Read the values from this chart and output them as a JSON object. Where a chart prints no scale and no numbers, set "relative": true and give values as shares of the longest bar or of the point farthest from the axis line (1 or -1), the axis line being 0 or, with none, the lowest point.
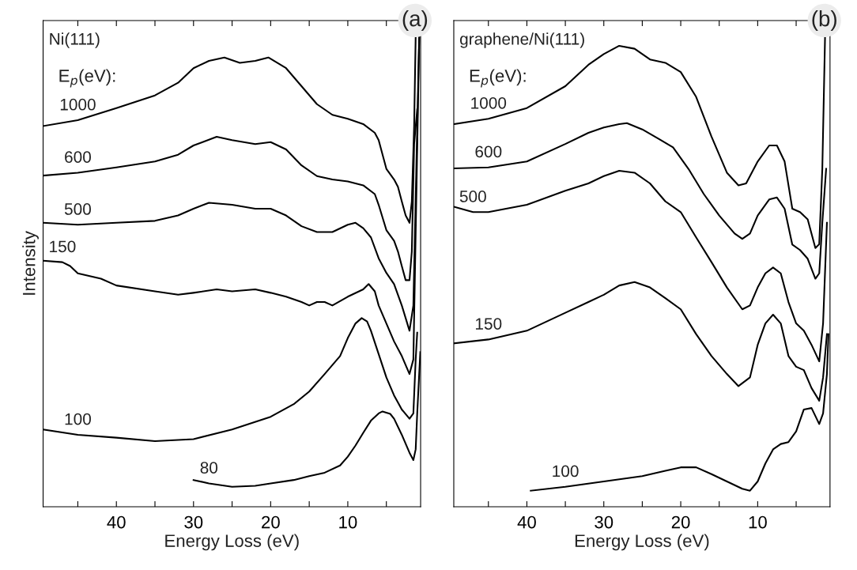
{
  "chart_data": [
    {
      "type": "line",
      "title": "(a)",
      "xlabel": "Energy Loss (eV)",
      "ylabel": "Intensity",
      "relative": true,
      "legend": false,
      "grid": false,
      "xlim": [
        49.5,
        0.56
      ],
      "xticks": [
        {
          "value": 45,
          "label": null
        },
        40,
        {
          "value": 35,
          "label": null
        },
        30,
        {
          "value": 25,
          "label": null
        },
        20,
        {
          "value": 15,
          "label": null
        },
        10,
        {
          "value": 5,
          "label": null
        }
      ],
      "annotations": [
        "Ni(111)",
        "E$_{p}$(eV):"
      ],
      "series": [
        {
          "name": "1000",
          "color": "#000000",
          "x": [
            49.5,
            45,
            40,
            35,
            32,
            30,
            28,
            26,
            24,
            22,
            20.3,
            18,
            16,
            14,
            12,
            10,
            8,
            6.5,
            6,
            5,
            4,
            3.5,
            3,
            2.5,
            2.0,
            1.7,
            1.4,
            1.2,
            1.1
          ],
          "values": [
            0.783,
            0.795,
            0.82,
            0.846,
            0.872,
            0.902,
            0.917,
            0.924,
            0.913,
            0.917,
            0.924,
            0.902,
            0.865,
            0.828,
            0.806,
            0.798,
            0.787,
            0.769,
            0.754,
            0.695,
            0.673,
            0.658,
            0.628,
            0.599,
            0.584,
            0.628,
            0.783,
            0.968,
            1.0
          ]
        },
        {
          "name": "600",
          "color": "#000000",
          "x": [
            49.5,
            45,
            40,
            35,
            32,
            30,
            27,
            25,
            22,
            20,
            18,
            16,
            14,
            12,
            10,
            8,
            6.5,
            6,
            5,
            4,
            3.5,
            3,
            2.5,
            2.0,
            1.7,
            1.4,
            1.0
          ],
          "values": [
            0.681,
            0.687,
            0.698,
            0.71,
            0.724,
            0.743,
            0.761,
            0.754,
            0.746,
            0.75,
            0.735,
            0.702,
            0.68,
            0.673,
            0.669,
            0.661,
            0.643,
            0.621,
            0.569,
            0.547,
            0.525,
            0.495,
            0.466,
            0.466,
            0.525,
            0.746,
            0.817
          ]
        },
        {
          "name": "500",
          "color": "#000000",
          "x": [
            49.5,
            45,
            40,
            35,
            32,
            30,
            28,
            25,
            22,
            20,
            18,
            16,
            14,
            12,
            10,
            9,
            8,
            7,
            6,
            5,
            4,
            3,
            2.0,
            1.5,
            0.7
          ],
          "values": [
            0.584,
            0.58,
            0.584,
            0.588,
            0.599,
            0.613,
            0.625,
            0.621,
            0.613,
            0.613,
            0.599,
            0.577,
            0.565,
            0.565,
            0.58,
            0.584,
            0.573,
            0.554,
            0.511,
            0.481,
            0.458,
            0.414,
            0.362,
            0.414,
            1.0
          ]
        },
        {
          "name": "150",
          "color": "#000000",
          "x": [
            49.5,
            47,
            46,
            45,
            42,
            40,
            35,
            32,
            30,
            27,
            25,
            22,
            20,
            18,
            16,
            15,
            14,
            13,
            12,
            10,
            8,
            7.3,
            6.5,
            6,
            5,
            4,
            3,
            2.0,
            1.5,
            0.7
          ],
          "values": [
            0.506,
            0.503,
            0.495,
            0.48,
            0.469,
            0.455,
            0.443,
            0.436,
            0.44,
            0.447,
            0.443,
            0.447,
            0.44,
            0.432,
            0.421,
            0.414,
            0.421,
            0.421,
            0.414,
            0.432,
            0.447,
            0.458,
            0.443,
            0.414,
            0.377,
            0.34,
            0.31,
            0.273,
            0.303,
            1.0
          ]
        },
        {
          "name": "100",
          "color": "#000000",
          "x": [
            49.5,
            45,
            40,
            35,
            30,
            25,
            20,
            17,
            15,
            13,
            11,
            10,
            9,
            8.2,
            7.5,
            7,
            6,
            5,
            4,
            3,
            2.0,
            1.5,
            1.2,
            1.0
          ],
          "values": [
            0.159,
            0.148,
            0.142,
            0.135,
            0.139,
            0.159,
            0.185,
            0.211,
            0.237,
            0.273,
            0.31,
            0.347,
            0.377,
            0.388,
            0.381,
            0.362,
            0.314,
            0.266,
            0.229,
            0.2,
            0.181,
            0.192,
            0.303,
            0.358
          ]
        },
        {
          "name": "80",
          "color": "#000000",
          "x": [
            30,
            28,
            25,
            22,
            20,
            17,
            15,
            13,
            11,
            10,
            9,
            8,
            7,
            6,
            5.5,
            4.5,
            4,
            3,
            2.0,
            1.5,
            1.2,
            1.0,
            0.6
          ],
          "values": [
            0.055,
            0.048,
            0.041,
            0.043,
            0.048,
            0.055,
            0.063,
            0.07,
            0.085,
            0.103,
            0.126,
            0.152,
            0.177,
            0.192,
            0.196,
            0.191,
            0.181,
            0.148,
            0.111,
            0.096,
            0.118,
            0.192,
            0.318
          ]
        }
      ]
    },
    {
      "type": "line",
      "title": "(b)",
      "xlabel": "Energy Loss (eV)",
      "relative": true,
      "legend": false,
      "grid": false,
      "xlim": [
        49.5,
        0.6
      ],
      "xticks": [
        {
          "value": 45,
          "label": null
        },
        40,
        {
          "value": 35,
          "label": null
        },
        30,
        {
          "value": 25,
          "label": null
        },
        20,
        {
          "value": 15,
          "label": null
        },
        10,
        {
          "value": 5,
          "label": null
        }
      ],
      "annotations": [
        "graphene/Ni(111)",
        "E$_{p}$(eV):"
      ],
      "series": [
        {
          "name": "1000",
          "color": "#000000",
          "x": [
            49.5,
            45,
            40,
            35,
            32,
            30,
            28,
            26,
            24,
            22,
            20,
            18,
            16,
            14,
            12.5,
            11.5,
            10,
            8.5,
            7.5,
            6.5,
            5.5,
            4.5,
            3.5,
            2.5,
            2.0,
            1.6,
            1.2
          ],
          "values": [
            0.787,
            0.798,
            0.82,
            0.865,
            0.909,
            0.931,
            0.948,
            0.942,
            0.92,
            0.913,
            0.894,
            0.843,
            0.761,
            0.687,
            0.661,
            0.665,
            0.71,
            0.743,
            0.743,
            0.71,
            0.613,
            0.606,
            0.591,
            0.532,
            0.54,
            0.695,
            1.0
          ]
        },
        {
          "name": "600",
          "color": "#000000",
          "x": [
            49.5,
            45,
            40,
            35,
            32,
            30,
            28,
            27,
            25,
            23,
            21,
            19,
            17,
            15,
            13,
            12,
            11,
            10,
            8.5,
            7.5,
            6.5,
            5.5,
            4.5,
            3.5,
            2.5,
            2.0,
            1.6,
            1.1
          ],
          "values": [
            0.696,
            0.698,
            0.71,
            0.746,
            0.769,
            0.78,
            0.787,
            0.789,
            0.776,
            0.758,
            0.739,
            0.695,
            0.643,
            0.599,
            0.562,
            0.551,
            0.562,
            0.599,
            0.632,
            0.636,
            0.613,
            0.539,
            0.528,
            0.51,
            0.469,
            0.48,
            0.584,
            0.695
          ]
        },
        {
          "name": "500",
          "color": "#000000",
          "x": [
            49.5,
            47,
            45,
            40,
            35,
            32,
            30,
            28,
            26,
            24,
            22,
            20,
            18,
            16,
            14,
            12,
            11,
            10,
            9,
            8,
            7,
            6,
            5,
            4,
            3,
            2.0,
            1.5,
            1.0
          ],
          "values": [
            0.617,
            0.606,
            0.606,
            0.621,
            0.65,
            0.665,
            0.68,
            0.691,
            0.687,
            0.665,
            0.628,
            0.606,
            0.554,
            0.503,
            0.451,
            0.406,
            0.414,
            0.451,
            0.48,
            0.492,
            0.48,
            0.421,
            0.377,
            0.362,
            0.333,
            0.299,
            0.377,
            0.584
          ]
        },
        {
          "name": "150",
          "color": "#000000",
          "x": [
            49.5,
            45,
            40,
            35,
            32,
            30,
            28,
            26,
            24,
            22,
            20,
            18,
            16,
            14,
            12.5,
            11,
            10,
            9,
            8,
            7,
            6,
            5,
            4,
            3,
            2.0,
            1.5,
            1.0
          ],
          "values": [
            0.336,
            0.344,
            0.362,
            0.399,
            0.421,
            0.436,
            0.455,
            0.462,
            0.451,
            0.429,
            0.406,
            0.355,
            0.31,
            0.273,
            0.248,
            0.266,
            0.333,
            0.377,
            0.395,
            0.377,
            0.31,
            0.288,
            0.281,
            0.244,
            0.218,
            0.266,
            0.355
          ]
        },
        {
          "name": "100",
          "color": "#000000",
          "x": [
            39.5,
            35,
            30,
            25,
            22,
            20,
            18,
            16,
            14,
            12,
            11,
            10,
            9,
            8,
            7,
            6,
            5,
            4,
            3,
            2.0,
            1.5,
            1.0,
            0.8
          ],
          "values": [
            0.033,
            0.041,
            0.052,
            0.063,
            0.074,
            0.081,
            0.081,
            0.067,
            0.052,
            0.037,
            0.033,
            0.052,
            0.089,
            0.118,
            0.129,
            0.133,
            0.155,
            0.2,
            0.203,
            0.17,
            0.192,
            0.273,
            0.355
          ]
        }
      ]
    }
  ]
}
